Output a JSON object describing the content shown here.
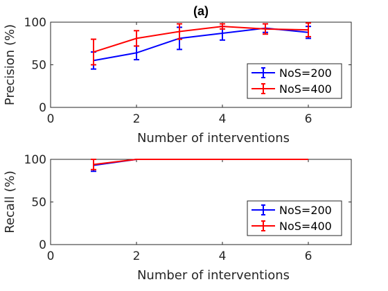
{
  "chart_data": [
    {
      "type": "line",
      "title": "(a)",
      "xlabel": "Number of interventions",
      "ylabel": "Precision (%)",
      "xlim": [
        0,
        7
      ],
      "ylim": [
        0,
        100
      ],
      "xticks": [
        "0",
        "2",
        "4",
        "6"
      ],
      "yticks": [
        "0",
        "50",
        "100"
      ],
      "x": [
        1,
        2,
        3,
        4,
        5,
        6
      ],
      "legend_position": "bottom-right",
      "series": [
        {
          "name": "NoS=200",
          "color": "#0000ff",
          "values": [
            55,
            64,
            81,
            87,
            93,
            88
          ],
          "errors": [
            10,
            8,
            13,
            8,
            5,
            7
          ]
        },
        {
          "name": "NoS=400",
          "color": "#ff0000",
          "values": [
            65,
            81,
            89,
            95,
            92,
            91
          ],
          "errors": [
            15,
            9,
            9,
            3,
            6,
            8
          ]
        }
      ]
    },
    {
      "type": "line",
      "title": "",
      "xlabel": "Number of interventions",
      "ylabel": "Recall (%)",
      "xlim": [
        0,
        7
      ],
      "ylim": [
        0,
        100
      ],
      "xticks": [
        "0",
        "2",
        "4",
        "6"
      ],
      "yticks": [
        "0",
        "50",
        "100"
      ],
      "x": [
        1,
        2,
        3,
        4,
        5,
        6
      ],
      "legend_position": "bottom-right",
      "series": [
        {
          "name": "NoS=200",
          "color": "#0000ff",
          "values": [
            93,
            100,
            100,
            100,
            100,
            100
          ],
          "errors": [
            7,
            0,
            0,
            0,
            0,
            0
          ]
        },
        {
          "name": "NoS=400",
          "color": "#ff0000",
          "values": [
            94,
            100,
            100,
            100,
            100,
            100
          ],
          "errors": [
            6,
            0,
            0,
            0,
            0,
            0
          ]
        }
      ]
    }
  ]
}
